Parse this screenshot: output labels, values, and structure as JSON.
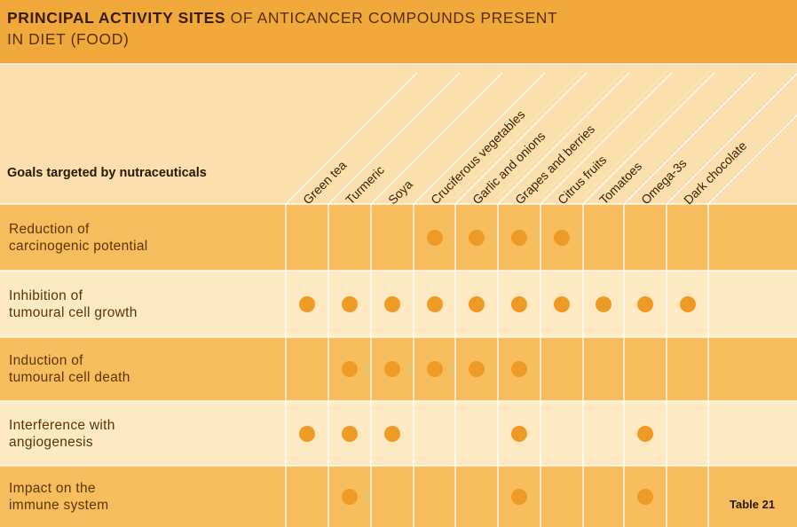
{
  "title": {
    "bold": "PRINCIPAL ACTIVITY SITES",
    "rest": " OF ANTICANCER COMPOUNDS PRESENT IN DIET (FOOD)"
  },
  "goals_header": "Goals targeted by nutraceuticals",
  "columns": [
    "Green tea",
    "Turmeric",
    "Soya",
    "Cruciferous vegetables",
    "Garlic and onions",
    "Grapes and berries",
    "Citrus fruits",
    "Tomatoes",
    "Omega-3s",
    "Dark chocolate"
  ],
  "rows": [
    {
      "label_lines": [
        "Reduction of",
        "carcinogenic potential"
      ],
      "marks": [
        0,
        0,
        0,
        1,
        1,
        1,
        1,
        0,
        0,
        0
      ]
    },
    {
      "label_lines": [
        "Inhibition of",
        "tumoural cell growth"
      ],
      "marks": [
        1,
        1,
        1,
        1,
        1,
        1,
        1,
        1,
        1,
        1
      ]
    },
    {
      "label_lines": [
        "Induction of",
        "tumoural cell death"
      ],
      "marks": [
        0,
        1,
        1,
        1,
        1,
        1,
        0,
        0,
        0,
        0
      ]
    },
    {
      "label_lines": [
        "Interference with",
        "angiogenesis"
      ],
      "marks": [
        1,
        1,
        1,
        0,
        0,
        1,
        0,
        0,
        1,
        0
      ]
    },
    {
      "label_lines": [
        "Impact on the",
        "immune system"
      ],
      "marks": [
        0,
        1,
        0,
        0,
        0,
        1,
        0,
        0,
        1,
        0
      ]
    }
  ],
  "table_label": "Table 21",
  "colors": {
    "title_bar": "#f0a83a",
    "dark_row": "#f6bd5e",
    "light_row": "#fde9c4",
    "dot": "#ee9a26"
  }
}
